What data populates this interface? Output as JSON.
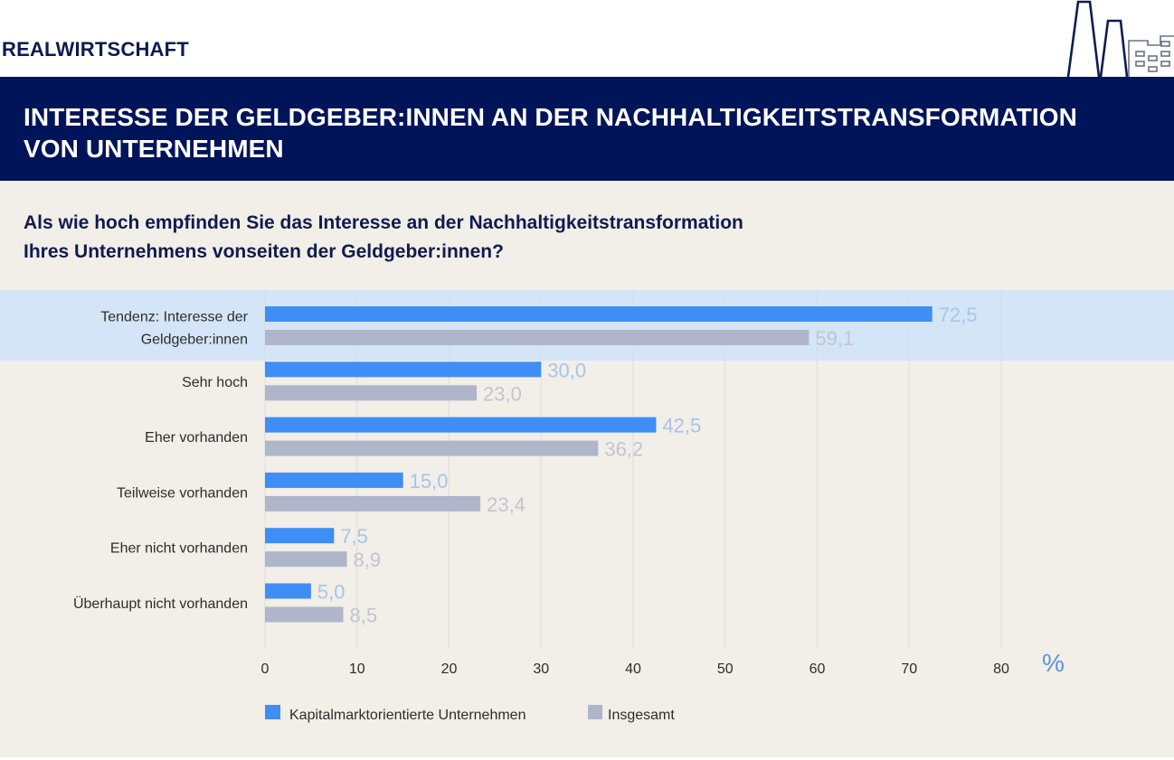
{
  "header": {
    "section_label": "REALWIRTSCHAFT",
    "icon": "factory-icon",
    "title_line1": "INTERESSE DER GELDGEBER:INNEN AN DER NACHHALTIGKEITSTRANSFORMATION",
    "title_line2": "VON UNTERNEHMEN"
  },
  "question": {
    "line1": "Als wie hoch empfinden Sie das Interesse an der Nachhaltigkeitstransformation",
    "line2": "Ihres Unternehmens vonseiten der Geldgeber:innen?"
  },
  "colors": {
    "series1": "#3f8ef5",
    "series2": "#afb6ca",
    "series1_label": "#a9c4ea",
    "series2_label": "#c2c6d0",
    "highlight_band": "#d3e5f6",
    "navy": "#001459"
  },
  "chart_data": {
    "type": "bar",
    "orientation": "horizontal",
    "title": "Als wie hoch empfinden Sie das Interesse an der Nachhaltigkeitstransformation Ihres Unternehmens vonseiten der Geldgeber:innen?",
    "categories": [
      [
        "Tendenz: Interesse der",
        "Geldgeber:innen"
      ],
      [
        "Sehr hoch"
      ],
      [
        "Eher vorhanden"
      ],
      [
        "Teilweise vorhanden"
      ],
      [
        "Eher nicht vorhanden"
      ],
      [
        "Überhaupt nicht vorhanden"
      ]
    ],
    "highlighted_category_index": 0,
    "series": [
      {
        "name": "Kapitalmarktorientierte Unternehmen",
        "values": [
          72.5,
          30.0,
          42.5,
          15.0,
          7.5,
          5.0
        ],
        "labels": [
          "72,5",
          "30,0",
          "42,5",
          "15,0",
          "7,5",
          "5,0"
        ]
      },
      {
        "name": "Insgesamt",
        "values": [
          59.1,
          23.0,
          36.2,
          23.4,
          8.9,
          8.5
        ],
        "labels": [
          "59,1",
          "23,0",
          "36,2",
          "23,4",
          "8,9",
          "8,5"
        ]
      }
    ],
    "xlabel": "",
    "unit_label": "%",
    "xlim": [
      0,
      80
    ],
    "x_ticks": [
      0,
      10,
      20,
      30,
      40,
      50,
      60,
      70,
      80
    ],
    "grid": true,
    "legend_position": "bottom-left"
  }
}
